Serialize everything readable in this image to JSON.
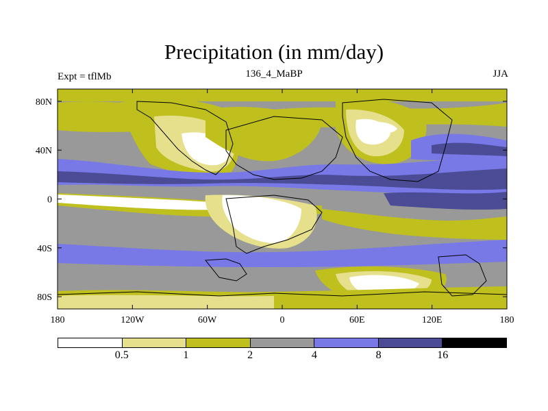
{
  "title": "Precipitation (in mm/day)",
  "left_label": "Expt = tflMb",
  "center_label": "136_4_MaBP",
  "right_label": "JJA",
  "lat_ticks": [
    "80N",
    "40N",
    "0",
    "40S",
    "80S"
  ],
  "lon_ticks": [
    "180",
    "120W",
    "60W",
    "0",
    "60E",
    "120E",
    "180"
  ],
  "colorbar": {
    "levels": [
      "0.5",
      "1",
      "2",
      "4",
      "8",
      "16"
    ],
    "colors": [
      "#ffffff",
      "#e6e08c",
      "#bfbf1e",
      "#999999",
      "#7878e6",
      "#4b4b96",
      "#000000"
    ]
  }
}
